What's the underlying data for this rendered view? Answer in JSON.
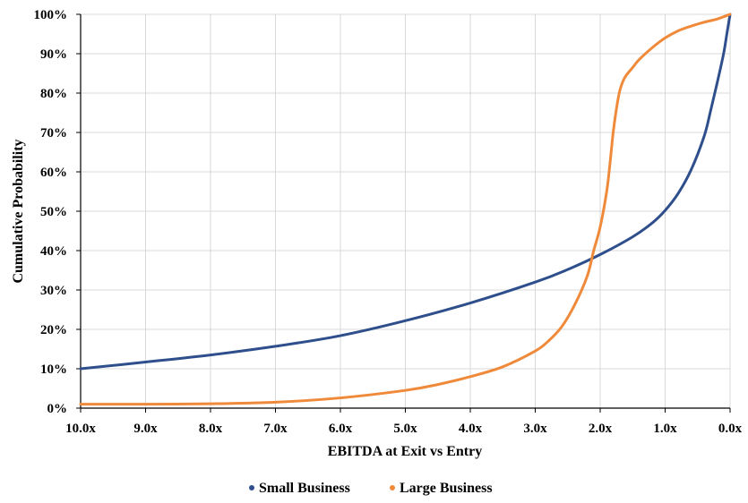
{
  "chart_data": {
    "type": "line",
    "title": "",
    "xlabel": "EBITDA at Exit vs Entry",
    "ylabel": "Cumulative Probability",
    "x_reversed": true,
    "xlim": [
      0,
      10
    ],
    "ylim": [
      0,
      100
    ],
    "grid": true,
    "legend_position": "bottom",
    "x_tick_values": [
      10,
      9,
      8,
      7,
      6,
      5,
      4,
      3,
      2,
      1,
      0
    ],
    "x_tick_labels": [
      "10.0x",
      "9.0x",
      "8.0x",
      "7.0x",
      "6.0x",
      "5.0x",
      "4.0x",
      "3.0x",
      "2.0x",
      "1.0x",
      "0.0x"
    ],
    "y_tick_values": [
      0,
      10,
      20,
      30,
      40,
      50,
      60,
      70,
      80,
      90,
      100
    ],
    "y_tick_labels": [
      "0%",
      "10%",
      "20%",
      "30%",
      "40%",
      "50%",
      "60%",
      "70%",
      "80%",
      "90%",
      "100%"
    ],
    "series": [
      {
        "name": "Small Business",
        "color": "#2e4f8c",
        "x": [
          10,
          9,
          8,
          7,
          6,
          5,
          4,
          3,
          2.5,
          2,
          1.5,
          1.2,
          1,
          0.8,
          0.6,
          0.4,
          0.3,
          0.2,
          0.1,
          0.05,
          0
        ],
        "y": [
          10,
          11.7,
          13.5,
          15.7,
          18.4,
          22.2,
          26.7,
          32,
          35.2,
          39,
          43.5,
          47,
          50.2,
          54.5,
          60.5,
          69,
          75.5,
          82.5,
          90,
          95,
          100
        ]
      },
      {
        "name": "Large Business",
        "color": "#f08a3b",
        "x": [
          10,
          9,
          8,
          7,
          6,
          5,
          4.5,
          4,
          3.5,
          3,
          2.8,
          2.6,
          2.4,
          2.2,
          2.1,
          2.0,
          1.9,
          1.85,
          1.8,
          1.75,
          1.7,
          1.65,
          1.6,
          1.5,
          1.4,
          1.2,
          1,
          0.8,
          0.6,
          0.4,
          0.2,
          0
        ],
        "y": [
          1,
          1,
          1.1,
          1.5,
          2.6,
          4.5,
          6,
          8,
          10.5,
          14.5,
          17,
          20.5,
          26,
          33.5,
          40,
          46,
          55,
          62,
          70,
          76,
          80.5,
          83,
          84.5,
          86.5,
          88.5,
          91.5,
          94,
          95.8,
          97,
          98,
          98.8,
          100
        ]
      }
    ]
  }
}
